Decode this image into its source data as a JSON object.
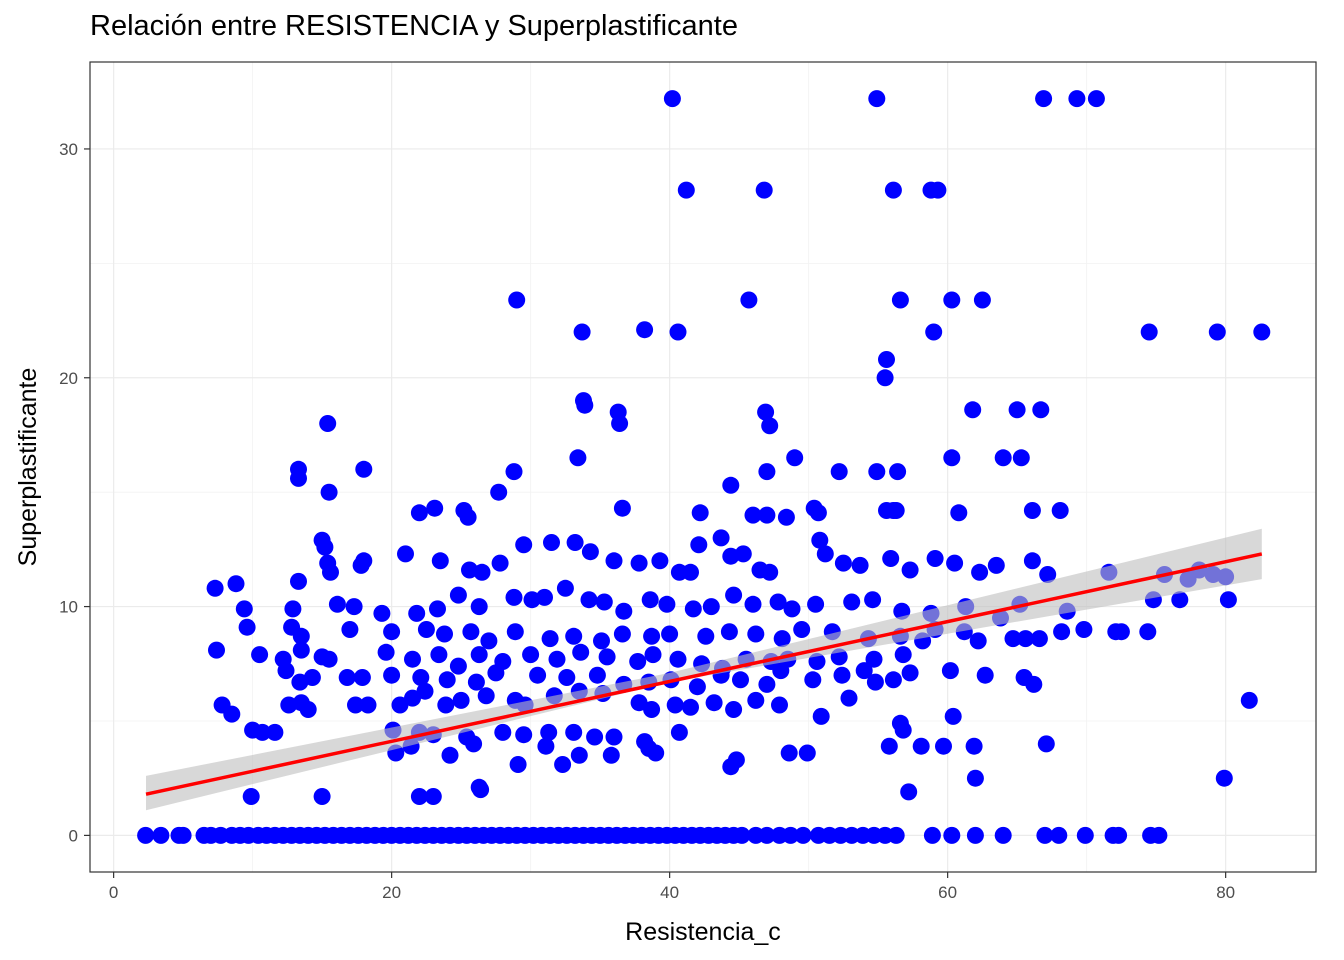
{
  "chart_data": {
    "type": "scatter",
    "title": "Relación entre RESISTENCIA y Superplastificante",
    "xlabel": "Resistencia_c",
    "ylabel": "Superplastificante",
    "xlim": [
      -1.7,
      86.5
    ],
    "ylim": [
      -1.6,
      33.8
    ],
    "x_ticks": [
      0,
      20,
      40,
      60,
      80
    ],
    "y_ticks": [
      0,
      10,
      20,
      30
    ],
    "grid": true,
    "legend": "none",
    "point_color": "#0000FF",
    "line_color": "#FF0000",
    "band_color": "#BEBEBE",
    "trend_line": {
      "x": [
        2.33,
        82.6
      ],
      "y": [
        1.8,
        12.3
      ]
    },
    "confidence_band": {
      "x": [
        2.33,
        40,
        82.6
      ],
      "lower": [
        1.1,
        6.7,
        11.2
      ],
      "upper": [
        2.6,
        7.1,
        13.4
      ]
    },
    "points": [
      [
        40.2,
        32.2
      ],
      [
        54.9,
        32.2
      ],
      [
        66.9,
        32.2
      ],
      [
        69.3,
        32.2
      ],
      [
        70.7,
        32.2
      ],
      [
        41.2,
        28.2
      ],
      [
        46.8,
        28.2
      ],
      [
        56.1,
        28.2
      ],
      [
        58.8,
        28.2
      ],
      [
        59.3,
        28.2
      ],
      [
        29.0,
        23.4
      ],
      [
        45.7,
        23.4
      ],
      [
        56.6,
        23.4
      ],
      [
        60.3,
        23.4
      ],
      [
        62.5,
        23.4
      ],
      [
        33.7,
        22.0
      ],
      [
        38.2,
        22.1
      ],
      [
        40.6,
        22.0
      ],
      [
        59.0,
        22.0
      ],
      [
        74.5,
        22.0
      ],
      [
        79.4,
        22.0
      ],
      [
        82.6,
        22.0
      ],
      [
        55.6,
        20.8
      ],
      [
        55.5,
        20.0
      ],
      [
        33.8,
        19.0
      ],
      [
        33.9,
        18.8
      ],
      [
        36.3,
        18.5
      ],
      [
        36.4,
        18.0
      ],
      [
        46.9,
        18.5
      ],
      [
        47.2,
        17.9
      ],
      [
        61.8,
        18.6
      ],
      [
        65.0,
        18.6
      ],
      [
        66.7,
        18.6
      ],
      [
        15.4,
        18.0
      ],
      [
        13.3,
        16.0
      ],
      [
        13.3,
        15.6
      ],
      [
        18.0,
        16.0
      ],
      [
        15.5,
        15.0
      ],
      [
        33.4,
        16.5
      ],
      [
        49.0,
        16.5
      ],
      [
        60.3,
        16.5
      ],
      [
        64.0,
        16.5
      ],
      [
        65.3,
        16.5
      ],
      [
        28.8,
        15.9
      ],
      [
        47.0,
        15.9
      ],
      [
        52.2,
        15.9
      ],
      [
        54.9,
        15.9
      ],
      [
        56.4,
        15.9
      ],
      [
        44.4,
        15.3
      ],
      [
        27.7,
        15.0
      ],
      [
        50.4,
        14.3
      ],
      [
        36.6,
        14.3
      ],
      [
        22.0,
        14.1
      ],
      [
        23.1,
        14.3
      ],
      [
        25.2,
        14.2
      ],
      [
        25.5,
        13.9
      ],
      [
        42.2,
        14.1
      ],
      [
        46.0,
        14.0
      ],
      [
        47.0,
        14.0
      ],
      [
        48.4,
        13.9
      ],
      [
        50.7,
        14.1
      ],
      [
        55.6,
        14.2
      ],
      [
        56.1,
        14.2
      ],
      [
        56.3,
        14.2
      ],
      [
        60.8,
        14.1
      ],
      [
        66.1,
        14.2
      ],
      [
        68.1,
        14.2
      ],
      [
        15.0,
        12.9
      ],
      [
        15.2,
        12.6
      ],
      [
        15.4,
        11.9
      ],
      [
        15.6,
        11.5
      ],
      [
        17.8,
        11.8
      ],
      [
        18.0,
        12.0
      ],
      [
        21.0,
        12.3
      ],
      [
        23.5,
        12.0
      ],
      [
        25.6,
        11.6
      ],
      [
        26.5,
        11.5
      ],
      [
        27.8,
        11.9
      ],
      [
        29.5,
        12.7
      ],
      [
        31.5,
        12.8
      ],
      [
        33.2,
        12.8
      ],
      [
        34.3,
        12.4
      ],
      [
        36.0,
        12.0
      ],
      [
        37.8,
        11.9
      ],
      [
        39.3,
        12.0
      ],
      [
        40.7,
        11.5
      ],
      [
        41.5,
        11.5
      ],
      [
        42.1,
        12.7
      ],
      [
        43.7,
        13.0
      ],
      [
        44.4,
        12.2
      ],
      [
        45.3,
        12.3
      ],
      [
        46.5,
        11.6
      ],
      [
        47.2,
        11.5
      ],
      [
        50.8,
        12.9
      ],
      [
        51.2,
        12.3
      ],
      [
        52.5,
        11.9
      ],
      [
        53.7,
        11.8
      ],
      [
        55.9,
        12.1
      ],
      [
        57.3,
        11.6
      ],
      [
        59.1,
        12.1
      ],
      [
        60.5,
        11.9
      ],
      [
        62.3,
        11.5
      ],
      [
        63.5,
        11.8
      ],
      [
        66.1,
        12.0
      ],
      [
        67.2,
        11.4
      ],
      [
        71.6,
        11.5
      ],
      [
        75.6,
        11.4
      ],
      [
        77.3,
        11.2
      ],
      [
        78.1,
        11.6
      ],
      [
        79.1,
        11.4
      ],
      [
        80.0,
        11.3
      ],
      [
        7.3,
        10.8
      ],
      [
        8.8,
        11.0
      ],
      [
        13.3,
        11.1
      ],
      [
        9.4,
        9.9
      ],
      [
        9.6,
        9.1
      ],
      [
        12.9,
        9.9
      ],
      [
        16.1,
        10.1
      ],
      [
        17.3,
        10.0
      ],
      [
        19.3,
        9.7
      ],
      [
        21.8,
        9.7
      ],
      [
        23.3,
        9.9
      ],
      [
        24.8,
        10.5
      ],
      [
        26.3,
        10.0
      ],
      [
        28.8,
        10.4
      ],
      [
        30.1,
        10.3
      ],
      [
        31.0,
        10.4
      ],
      [
        32.5,
        10.8
      ],
      [
        34.2,
        10.3
      ],
      [
        35.3,
        10.2
      ],
      [
        36.7,
        9.8
      ],
      [
        38.6,
        10.3
      ],
      [
        39.8,
        10.1
      ],
      [
        41.7,
        9.9
      ],
      [
        43.0,
        10.0
      ],
      [
        44.6,
        10.5
      ],
      [
        46.0,
        10.1
      ],
      [
        47.8,
        10.2
      ],
      [
        48.8,
        9.9
      ],
      [
        50.5,
        10.1
      ],
      [
        53.1,
        10.2
      ],
      [
        54.6,
        10.3
      ],
      [
        56.7,
        9.8
      ],
      [
        58.8,
        9.7
      ],
      [
        61.3,
        10.0
      ],
      [
        63.8,
        9.5
      ],
      [
        65.2,
        10.1
      ],
      [
        68.6,
        9.8
      ],
      [
        74.8,
        10.3
      ],
      [
        76.7,
        10.3
      ],
      [
        80.2,
        10.3
      ],
      [
        12.8,
        9.1
      ],
      [
        13.5,
        8.7
      ],
      [
        17.0,
        9.0
      ],
      [
        20.0,
        8.9
      ],
      [
        22.5,
        9.0
      ],
      [
        23.8,
        8.8
      ],
      [
        25.7,
        8.9
      ],
      [
        27.0,
        8.5
      ],
      [
        28.9,
        8.9
      ],
      [
        31.4,
        8.6
      ],
      [
        33.1,
        8.7
      ],
      [
        35.1,
        8.5
      ],
      [
        36.6,
        8.8
      ],
      [
        38.7,
        8.7
      ],
      [
        40.0,
        8.8
      ],
      [
        42.6,
        8.7
      ],
      [
        44.3,
        8.9
      ],
      [
        46.2,
        8.8
      ],
      [
        48.1,
        8.6
      ],
      [
        49.5,
        9.0
      ],
      [
        51.7,
        8.9
      ],
      [
        54.3,
        8.6
      ],
      [
        56.6,
        8.7
      ],
      [
        58.2,
        8.5
      ],
      [
        59.1,
        9.0
      ],
      [
        61.2,
        8.9
      ],
      [
        62.2,
        8.5
      ],
      [
        64.7,
        8.6
      ],
      [
        65.6,
        8.6
      ],
      [
        66.6,
        8.6
      ],
      [
        68.2,
        8.9
      ],
      [
        69.8,
        9.0
      ],
      [
        72.1,
        8.9
      ],
      [
        72.5,
        8.9
      ],
      [
        74.4,
        8.9
      ],
      [
        7.4,
        8.1
      ],
      [
        10.5,
        7.9
      ],
      [
        12.2,
        7.7
      ],
      [
        13.5,
        8.1
      ],
      [
        15.0,
        7.8
      ],
      [
        15.5,
        7.7
      ],
      [
        17.9,
        6.9
      ],
      [
        19.6,
        8.0
      ],
      [
        21.5,
        7.7
      ],
      [
        23.4,
        7.9
      ],
      [
        24.8,
        7.4
      ],
      [
        26.3,
        7.9
      ],
      [
        28.0,
        7.6
      ],
      [
        30.0,
        7.9
      ],
      [
        31.9,
        7.7
      ],
      [
        33.6,
        8.0
      ],
      [
        35.5,
        7.8
      ],
      [
        37.7,
        7.6
      ],
      [
        38.8,
        7.9
      ],
      [
        40.6,
        7.7
      ],
      [
        42.3,
        7.5
      ],
      [
        43.8,
        7.3
      ],
      [
        45.5,
        7.7
      ],
      [
        47.3,
        7.6
      ],
      [
        48.5,
        7.7
      ],
      [
        50.6,
        7.6
      ],
      [
        52.2,
        7.8
      ],
      [
        54.7,
        7.7
      ],
      [
        56.8,
        7.9
      ],
      [
        12.4,
        7.2
      ],
      [
        13.4,
        6.7
      ],
      [
        14.3,
        6.9
      ],
      [
        16.8,
        6.9
      ],
      [
        20.0,
        7.0
      ],
      [
        22.1,
        6.9
      ],
      [
        24.0,
        6.8
      ],
      [
        26.1,
        6.7
      ],
      [
        27.5,
        7.1
      ],
      [
        30.5,
        7.0
      ],
      [
        32.6,
        6.9
      ],
      [
        34.8,
        7.0
      ],
      [
        36.7,
        6.6
      ],
      [
        38.5,
        6.7
      ],
      [
        40.1,
        6.8
      ],
      [
        42.0,
        6.5
      ],
      [
        43.7,
        7.0
      ],
      [
        45.1,
        6.8
      ],
      [
        47.0,
        6.6
      ],
      [
        48.0,
        7.2
      ],
      [
        50.3,
        6.8
      ],
      [
        52.4,
        7.0
      ],
      [
        54.0,
        7.2
      ],
      [
        56.1,
        6.8
      ],
      [
        57.3,
        7.1
      ],
      [
        60.2,
        7.2
      ],
      [
        62.7,
        7.0
      ],
      [
        65.5,
        6.9
      ],
      [
        66.2,
        6.6
      ],
      [
        7.8,
        5.7
      ],
      [
        8.5,
        5.3
      ],
      [
        12.6,
        5.7
      ],
      [
        13.5,
        5.8
      ],
      [
        14.0,
        5.5
      ],
      [
        17.4,
        5.7
      ],
      [
        18.3,
        5.7
      ],
      [
        20.6,
        5.7
      ],
      [
        21.5,
        6.0
      ],
      [
        22.4,
        6.3
      ],
      [
        23.9,
        5.7
      ],
      [
        25.0,
        5.9
      ],
      [
        26.8,
        6.1
      ],
      [
        28.9,
        5.9
      ],
      [
        29.6,
        5.7
      ],
      [
        31.7,
        6.1
      ],
      [
        33.5,
        6.3
      ],
      [
        35.2,
        6.2
      ],
      [
        37.8,
        5.8
      ],
      [
        38.7,
        5.5
      ],
      [
        40.4,
        5.7
      ],
      [
        41.5,
        5.6
      ],
      [
        43.2,
        5.8
      ],
      [
        44.6,
        5.5
      ],
      [
        46.2,
        5.9
      ],
      [
        47.9,
        5.7
      ],
      [
        50.9,
        5.2
      ],
      [
        52.9,
        6.0
      ],
      [
        54.8,
        6.7
      ],
      [
        10.0,
        4.6
      ],
      [
        10.7,
        4.5
      ],
      [
        11.6,
        4.5
      ],
      [
        20.1,
        4.6
      ],
      [
        22.0,
        4.5
      ],
      [
        23.0,
        4.4
      ],
      [
        25.4,
        4.3
      ],
      [
        28.0,
        4.5
      ],
      [
        29.5,
        4.4
      ],
      [
        31.3,
        4.5
      ],
      [
        33.1,
        4.5
      ],
      [
        34.6,
        4.3
      ],
      [
        36.0,
        4.3
      ],
      [
        38.2,
        4.1
      ],
      [
        40.7,
        4.5
      ],
      [
        56.6,
        4.9
      ],
      [
        56.8,
        4.6
      ],
      [
        60.4,
        5.2
      ],
      [
        20.3,
        3.6
      ],
      [
        21.4,
        3.9
      ],
      [
        24.2,
        3.5
      ],
      [
        25.9,
        4.0
      ],
      [
        29.1,
        3.1
      ],
      [
        31.1,
        3.9
      ],
      [
        32.3,
        3.1
      ],
      [
        33.5,
        3.5
      ],
      [
        35.8,
        3.5
      ],
      [
        38.5,
        3.8
      ],
      [
        39.0,
        3.6
      ],
      [
        44.4,
        3.0
      ],
      [
        44.8,
        3.3
      ],
      [
        48.6,
        3.6
      ],
      [
        49.9,
        3.6
      ],
      [
        55.8,
        3.9
      ],
      [
        58.1,
        3.9
      ],
      [
        59.7,
        3.9
      ],
      [
        61.9,
        3.9
      ],
      [
        67.1,
        4.0
      ],
      [
        9.9,
        1.7
      ],
      [
        15.0,
        1.7
      ],
      [
        22.0,
        1.7
      ],
      [
        23.0,
        1.7
      ],
      [
        26.3,
        2.1
      ],
      [
        26.4,
        2.0
      ],
      [
        57.2,
        1.9
      ],
      [
        62.0,
        2.5
      ],
      [
        79.9,
        2.5
      ],
      [
        81.7,
        5.9
      ],
      [
        2.3,
        0
      ],
      [
        3.4,
        0
      ],
      [
        4.7,
        0
      ],
      [
        5.0,
        0
      ],
      [
        6.5,
        0
      ],
      [
        7.0,
        0
      ],
      [
        7.7,
        0
      ],
      [
        8.5,
        0
      ],
      [
        9.1,
        0
      ],
      [
        9.7,
        0
      ],
      [
        10.4,
        0
      ],
      [
        11.0,
        0
      ],
      [
        11.6,
        0
      ],
      [
        12.2,
        0
      ],
      [
        12.8,
        0
      ],
      [
        13.4,
        0
      ],
      [
        14.0,
        0
      ],
      [
        14.6,
        0
      ],
      [
        15.2,
        0
      ],
      [
        15.8,
        0
      ],
      [
        16.4,
        0
      ],
      [
        17.0,
        0
      ],
      [
        17.6,
        0
      ],
      [
        18.2,
        0
      ],
      [
        18.8,
        0
      ],
      [
        19.4,
        0
      ],
      [
        20.0,
        0
      ],
      [
        20.6,
        0
      ],
      [
        21.2,
        0
      ],
      [
        21.8,
        0
      ],
      [
        22.4,
        0
      ],
      [
        23.0,
        0
      ],
      [
        23.6,
        0
      ],
      [
        24.2,
        0
      ],
      [
        24.8,
        0
      ],
      [
        25.4,
        0
      ],
      [
        26.0,
        0
      ],
      [
        26.6,
        0
      ],
      [
        27.2,
        0
      ],
      [
        27.8,
        0
      ],
      [
        28.4,
        0
      ],
      [
        29.0,
        0
      ],
      [
        29.6,
        0
      ],
      [
        30.2,
        0
      ],
      [
        30.8,
        0
      ],
      [
        31.4,
        0
      ],
      [
        32.0,
        0
      ],
      [
        32.6,
        0
      ],
      [
        33.2,
        0
      ],
      [
        33.8,
        0
      ],
      [
        34.4,
        0
      ],
      [
        35.0,
        0
      ],
      [
        35.6,
        0
      ],
      [
        36.2,
        0
      ],
      [
        36.8,
        0
      ],
      [
        37.4,
        0
      ],
      [
        38.0,
        0
      ],
      [
        38.6,
        0
      ],
      [
        39.2,
        0
      ],
      [
        39.8,
        0
      ],
      [
        40.4,
        0
      ],
      [
        41.0,
        0
      ],
      [
        41.6,
        0
      ],
      [
        42.2,
        0
      ],
      [
        42.8,
        0
      ],
      [
        43.4,
        0
      ],
      [
        44.0,
        0
      ],
      [
        44.6,
        0
      ],
      [
        45.2,
        0
      ],
      [
        46.2,
        0
      ],
      [
        47.0,
        0
      ],
      [
        47.9,
        0
      ],
      [
        48.7,
        0
      ],
      [
        49.6,
        0
      ],
      [
        50.7,
        0
      ],
      [
        51.5,
        0
      ],
      [
        52.3,
        0
      ],
      [
        53.1,
        0
      ],
      [
        53.9,
        0
      ],
      [
        54.7,
        0
      ],
      [
        55.5,
        0
      ],
      [
        56.3,
        0
      ],
      [
        58.9,
        0
      ],
      [
        60.3,
        0
      ],
      [
        62.0,
        0
      ],
      [
        64.0,
        0
      ],
      [
        67.0,
        0
      ],
      [
        68.0,
        0
      ],
      [
        69.9,
        0
      ],
      [
        71.9,
        0
      ],
      [
        72.3,
        0
      ],
      [
        74.6,
        0
      ],
      [
        75.2,
        0
      ]
    ]
  }
}
